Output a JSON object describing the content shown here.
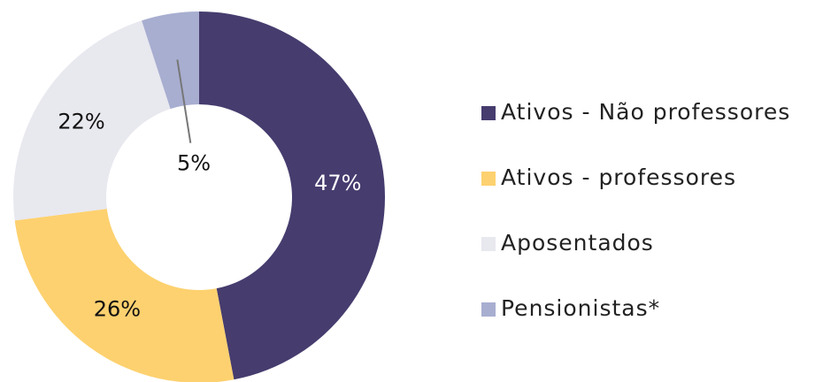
{
  "chart_data": {
    "type": "donut",
    "categories": [
      "Ativos - Não professores",
      "Ativos - professores",
      "Aposentados",
      "Pensionistas*"
    ],
    "values": [
      47,
      26,
      22,
      5
    ],
    "value_labels": [
      "47%",
      "26%",
      "22%",
      "5%"
    ],
    "colors": [
      "#463c6e",
      "#fdd16f",
      "#e8e8ef",
      "#a8aed0"
    ],
    "legend": "right"
  }
}
